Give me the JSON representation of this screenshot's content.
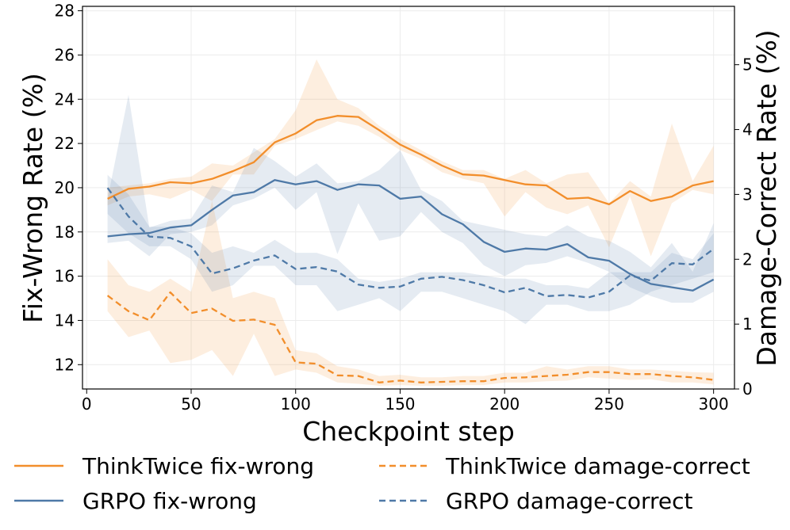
{
  "chart_data": {
    "type": "line",
    "xlabel": "Checkpoint step",
    "ylabel_left": "Fix-Wrong Rate (%)",
    "ylabel_right": "Damage-Correct Rate (%)",
    "xlim": [
      -2,
      310
    ],
    "ylim_left": [
      10.9,
      28.2
    ],
    "ylim_right": [
      0,
      5.9
    ],
    "xticks": [
      "0",
      "50",
      "100",
      "150",
      "200",
      "250",
      "300"
    ],
    "yticks_left": [
      "12",
      "14",
      "16",
      "18",
      "20",
      "22",
      "24",
      "26",
      "28"
    ],
    "yticks_right": [
      "0",
      "1",
      "2",
      "3",
      "4",
      "5"
    ],
    "grid": true,
    "legend_position": "bottom",
    "x": [
      10,
      20,
      30,
      40,
      50,
      60,
      70,
      80,
      90,
      100,
      110,
      120,
      130,
      140,
      150,
      160,
      170,
      180,
      190,
      200,
      210,
      220,
      230,
      240,
      250,
      260,
      270,
      280,
      290,
      300
    ],
    "series": [
      {
        "name": "ThinkTwice fix-wrong",
        "axis": "left",
        "color": "#f28e2b",
        "style": "solid",
        "values": [
          19.5,
          19.95,
          20.05,
          20.25,
          20.2,
          20.4,
          20.75,
          21.15,
          22.05,
          22.45,
          23.05,
          23.25,
          23.2,
          22.6,
          21.95,
          21.5,
          21.0,
          20.6,
          20.55,
          20.35,
          20.15,
          20.1,
          19.5,
          19.55,
          19.25,
          19.85,
          19.4,
          19.6,
          20.1,
          20.3
        ],
        "band_low": [
          19.2,
          19.6,
          19.7,
          19.5,
          19.9,
          19.4,
          20.6,
          20.6,
          21.9,
          22.2,
          22.6,
          23.0,
          22.8,
          22.3,
          21.7,
          21.3,
          20.7,
          20.4,
          20.2,
          18.7,
          19.8,
          19.1,
          18.8,
          19.2,
          17.3,
          19.6,
          16.9,
          19.3,
          19.9,
          19.7
        ],
        "band_high": [
          20.0,
          20.1,
          20.2,
          20.4,
          20.5,
          21.1,
          21.0,
          21.6,
          22.2,
          23.5,
          25.8,
          24.0,
          23.6,
          22.8,
          22.2,
          21.7,
          21.2,
          20.8,
          20.8,
          20.4,
          20.8,
          20.2,
          20.6,
          20.7,
          19.3,
          20.3,
          19.6,
          22.9,
          20.3,
          21.9
        ]
      },
      {
        "name": "GRPO fix-wrong",
        "axis": "left",
        "color": "#4e79a7",
        "style": "solid",
        "values": [
          17.8,
          17.9,
          17.95,
          18.2,
          18.3,
          19.0,
          19.65,
          19.8,
          20.35,
          20.15,
          20.3,
          19.9,
          20.15,
          20.1,
          19.5,
          19.6,
          18.8,
          18.35,
          17.55,
          17.1,
          17.25,
          17.2,
          17.45,
          16.85,
          16.7,
          16.1,
          15.65,
          15.5,
          15.35,
          15.85
        ],
        "band_low": [
          17.5,
          17.6,
          16.9,
          17.9,
          18.0,
          18.3,
          19.2,
          19.5,
          20.0,
          19.0,
          19.8,
          17.0,
          19.3,
          17.6,
          17.8,
          18.9,
          18.0,
          17.5,
          16.5,
          16.0,
          16.5,
          16.6,
          16.9,
          16.6,
          16.2,
          15.5,
          15.1,
          14.8,
          14.8,
          15.3
        ],
        "band_high": [
          19.5,
          24.2,
          18.2,
          18.5,
          18.6,
          20.1,
          19.8,
          21.8,
          21.2,
          20.5,
          21.1,
          20.2,
          20.3,
          20.8,
          21.7,
          19.9,
          19.4,
          18.5,
          18.3,
          18.1,
          17.9,
          17.8,
          18.3,
          17.8,
          17.6,
          17.1,
          16.4,
          17.5,
          16.2,
          18.4
        ]
      },
      {
        "name": "ThinkTwice damage-correct",
        "axis": "right",
        "color": "#f28e2b",
        "style": "dashed",
        "values": [
          1.44,
          1.2,
          1.06,
          1.49,
          1.17,
          1.24,
          1.05,
          1.07,
          0.99,
          0.41,
          0.39,
          0.21,
          0.2,
          0.1,
          0.13,
          0.1,
          0.11,
          0.12,
          0.12,
          0.17,
          0.18,
          0.2,
          0.22,
          0.26,
          0.26,
          0.23,
          0.23,
          0.2,
          0.18,
          0.14
        ],
        "band_low": [
          1.2,
          0.8,
          0.9,
          0.4,
          0.45,
          0.6,
          0.2,
          0.85,
          0.2,
          0.3,
          0.25,
          0.1,
          0.08,
          0.05,
          0.06,
          0.05,
          0.05,
          0.06,
          0.06,
          0.1,
          0.1,
          0.12,
          0.13,
          0.18,
          0.16,
          0.14,
          0.15,
          0.1,
          0.1,
          0.07
        ],
        "band_high": [
          2.0,
          1.6,
          1.5,
          1.7,
          1.5,
          2.9,
          1.4,
          1.5,
          1.4,
          0.6,
          0.55,
          0.35,
          0.3,
          0.2,
          0.22,
          0.18,
          0.18,
          0.2,
          0.2,
          0.25,
          0.25,
          0.35,
          0.3,
          0.35,
          0.35,
          0.3,
          0.3,
          0.28,
          0.26,
          0.25
        ]
      },
      {
        "name": "GRPO damage-correct",
        "axis": "right",
        "color": "#4e79a7",
        "style": "dashed",
        "values": [
          3.1,
          2.66,
          2.35,
          2.33,
          2.2,
          1.78,
          1.86,
          1.98,
          2.06,
          1.85,
          1.88,
          1.81,
          1.61,
          1.56,
          1.58,
          1.7,
          1.73,
          1.68,
          1.6,
          1.49,
          1.56,
          1.43,
          1.45,
          1.41,
          1.5,
          1.75,
          1.67,
          1.94,
          1.92,
          2.16
        ],
        "band_low": [
          2.7,
          2.4,
          2.2,
          2.2,
          2.0,
          1.5,
          1.6,
          1.9,
          1.9,
          1.6,
          1.6,
          1.2,
          1.3,
          1.4,
          1.2,
          1.5,
          1.5,
          1.4,
          1.3,
          1.2,
          1.0,
          1.3,
          1.3,
          1.2,
          1.2,
          1.3,
          1.5,
          1.6,
          1.7,
          1.8
        ],
        "band_high": [
          3.3,
          3.0,
          2.5,
          2.5,
          2.4,
          2.1,
          2.2,
          2.1,
          2.3,
          2.1,
          2.1,
          2.0,
          1.7,
          1.65,
          1.7,
          1.8,
          1.8,
          1.8,
          1.75,
          1.7,
          1.7,
          1.6,
          1.6,
          1.55,
          1.8,
          1.8,
          1.8,
          2.1,
          2.0,
          2.4
        ]
      }
    ]
  }
}
